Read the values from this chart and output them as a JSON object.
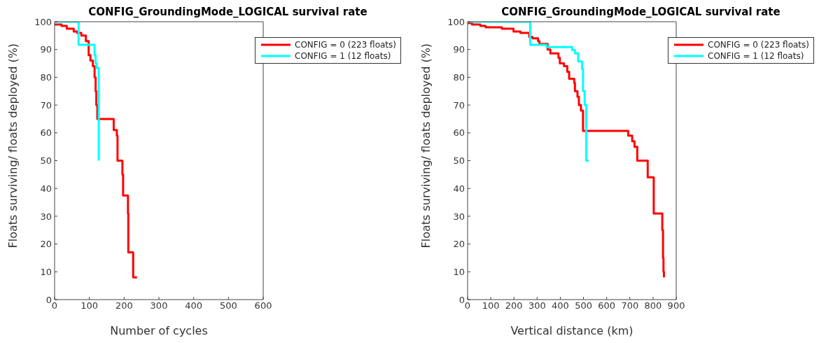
{
  "chart_data": [
    {
      "type": "step",
      "title": "CONFIG_GroundingMode_LOGICAL survival rate",
      "xlabel": "Number of cycles",
      "ylabel": "Floats surviving/ floats deployed (%)",
      "xlim": [
        0,
        600
      ],
      "xticks": [
        0,
        100,
        200,
        300,
        400,
        500,
        600
      ],
      "ylim": [
        0,
        100
      ],
      "yticks": [
        0,
        10,
        20,
        30,
        40,
        50,
        60,
        70,
        80,
        90,
        100
      ],
      "legend": "top right",
      "series": [
        {
          "name": "CONFIG = 0 (223 floats)",
          "color": "#ff0000",
          "x": [
            0,
            20,
            35,
            55,
            65,
            77,
            90,
            98,
            103,
            110,
            115,
            118,
            120,
            123,
            170,
            179,
            181,
            195,
            197,
            211,
            212,
            226,
            237
          ],
          "values": [
            99,
            98.5,
            97.5,
            96.5,
            96,
            95,
            93,
            88,
            86,
            84,
            80,
            75,
            70,
            65,
            61,
            59,
            50,
            45,
            37.5,
            31,
            17,
            8,
            8
          ]
        },
        {
          "name": "CONFIG = 1 (12 floats)",
          "color": "#00ffff",
          "x": [
            0,
            69,
            115,
            118,
            121,
            125,
            127
          ],
          "values": [
            100,
            91.7,
            88,
            85,
            83.3,
            83.3,
            50
          ]
        }
      ]
    },
    {
      "type": "step",
      "title": "CONFIG_GroundingMode_LOGICAL survival rate",
      "xlabel": "Vertical distance (km)",
      "ylabel": "Floats surviving/ floats deployed (%)",
      "xlim": [
        0,
        900
      ],
      "xticks": [
        0,
        100,
        200,
        300,
        400,
        500,
        600,
        700,
        800,
        900
      ],
      "ylim": [
        0,
        100
      ],
      "yticks": [
        0,
        10,
        20,
        30,
        40,
        50,
        60,
        70,
        80,
        90,
        100
      ],
      "legend": "top right",
      "series": [
        {
          "name": "CONFIG = 0 (223 floats)",
          "color": "#ff0000",
          "x": [
            0,
            19,
            55,
            78,
            148,
            198,
            228,
            266,
            280,
            304,
            310,
            345,
            357,
            392,
            398,
            416,
            430,
            438,
            460,
            463,
            474,
            480,
            489,
            498,
            693,
            710,
            720,
            732,
            777,
            803,
            840,
            843,
            845,
            847
          ],
          "values": [
            99.5,
            99,
            98.5,
            98,
            97.5,
            96.5,
            96,
            94.5,
            94,
            93,
            92,
            90,
            88.6,
            87,
            85,
            84,
            82,
            79.5,
            78,
            75,
            73,
            70,
            68,
            60.7,
            59,
            57,
            55,
            50,
            44,
            31,
            25,
            15,
            10,
            8
          ]
        },
        {
          "name": "CONFIG = 1 (12 floats)",
          "color": "#00ffff",
          "x": [
            0,
            270,
            341,
            451,
            463,
            477,
            494,
            498,
            505,
            512,
            522
          ],
          "values": [
            100,
            91.7,
            90.9,
            89.8,
            88.6,
            85.7,
            83,
            75,
            70,
            50,
            50
          ]
        }
      ]
    }
  ]
}
